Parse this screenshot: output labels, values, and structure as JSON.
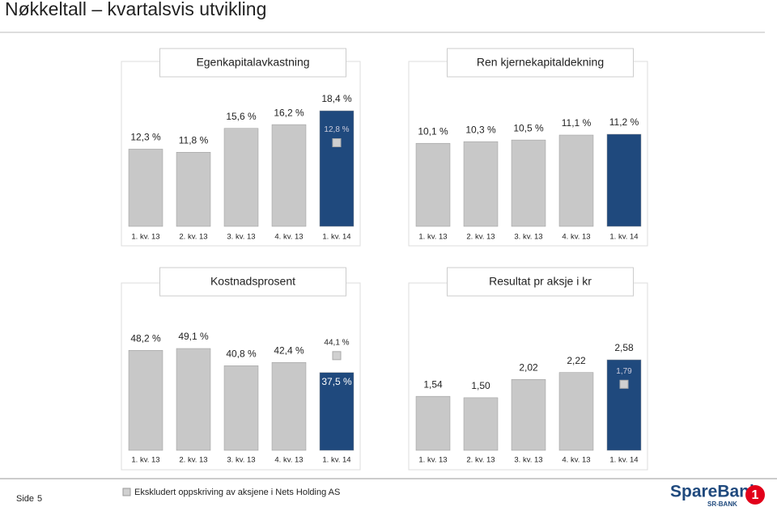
{
  "page_title": "Nøkkeltall – kvartalsvis utvikling",
  "footer": {
    "page_label": "Side",
    "page_number": "5",
    "legend": "Ekskludert oppskriving av aksjene i Nets Holding AS",
    "logo": "SpareBank",
    "logo_sub": "SR-BANK",
    "logo_mark": "1"
  },
  "chart_data": [
    {
      "type": "bar",
      "title": "Egenkapitalavkastning",
      "categories": [
        "1. kv. 13",
        "2. kv. 13",
        "3. kv. 13",
        "4. kv. 13",
        "1. kv. 14"
      ],
      "values": [
        12.3,
        11.8,
        15.6,
        16.2,
        18.4
      ],
      "value_labels": [
        "12,3 %",
        "11,8 %",
        "15,6 %",
        "16,2 %",
        "18,4 %"
      ],
      "colors": [
        "#c8c8c8",
        "#c8c8c8",
        "#c8c8c8",
        "#c8c8c8",
        "#1f497d"
      ],
      "adjusted": {
        "values": [
          null,
          null,
          null,
          null,
          12.8
        ],
        "value_labels": [
          null,
          null,
          null,
          null,
          "12,8 %"
        ],
        "color": "#d0d0d0"
      }
    },
    {
      "type": "bar",
      "title": "Ren kjernekapitaldekning",
      "categories": [
        "1. kv. 13",
        "2. kv. 13",
        "3. kv. 13",
        "4. kv. 13",
        "1. kv. 14"
      ],
      "values": [
        10.1,
        10.3,
        10.5,
        11.1,
        11.2
      ],
      "value_labels": [
        "10,1 %",
        "10,3 %",
        "10,5 %",
        "11,1 %",
        "11,2 %"
      ],
      "colors": [
        "#c8c8c8",
        "#c8c8c8",
        "#c8c8c8",
        "#c8c8c8",
        "#1f497d"
      ]
    },
    {
      "type": "bar",
      "title": "Kostnadsprosent",
      "categories": [
        "1. kv. 13",
        "2. kv. 13",
        "3. kv. 13",
        "4. kv. 13",
        "1. kv. 14"
      ],
      "values": [
        48.2,
        49.1,
        40.8,
        42.4,
        37.5
      ],
      "value_labels": [
        "48,2 %",
        "49,1 %",
        "40,8 %",
        "42,4 %",
        "37,5 %"
      ],
      "colors": [
        "#c8c8c8",
        "#c8c8c8",
        "#c8c8c8",
        "#c8c8c8",
        "#1f497d"
      ],
      "adjusted": {
        "values": [
          null,
          null,
          null,
          null,
          44.1
        ],
        "value_labels": [
          null,
          null,
          null,
          null,
          "44,1 %"
        ],
        "color": "#d0d0d0"
      }
    },
    {
      "type": "bar",
      "title": "Resultat pr aksje i kr",
      "categories": [
        "1. kv. 13",
        "2. kv. 13",
        "3. kv. 13",
        "4. kv. 13",
        "1. kv. 14"
      ],
      "values": [
        1.54,
        1.5,
        2.02,
        2.22,
        2.58
      ],
      "value_labels": [
        "1,54",
        "1,50",
        "2,02",
        "2,22",
        "2,58"
      ],
      "colors": [
        "#c8c8c8",
        "#c8c8c8",
        "#c8c8c8",
        "#c8c8c8",
        "#1f497d"
      ],
      "adjusted": {
        "values": [
          null,
          null,
          null,
          null,
          1.79
        ],
        "value_labels": [
          null,
          null,
          null,
          null,
          "1,79"
        ],
        "color": "#d0d0d0"
      }
    }
  ]
}
